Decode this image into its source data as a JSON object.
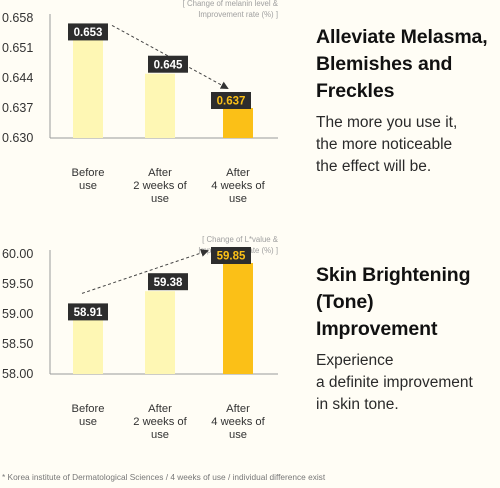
{
  "chart_data": [
    {
      "type": "bar",
      "title": "[ Change of melanin level & Improvement rate (%) ]",
      "title_lines": [
        "[ Change of melanin level &",
        "Improvement rate (%) ]"
      ],
      "categories": [
        [
          "Before",
          "use"
        ],
        [
          "After",
          "2 weeks of",
          "use"
        ],
        [
          "After",
          "4 weeks of",
          "use"
        ]
      ],
      "values": [
        0.653,
        0.645,
        0.637
      ],
      "value_labels": [
        "0.653",
        "0.645",
        "0.637"
      ],
      "yticks": [
        "0.658",
        "0.651",
        "0.644",
        "0.637",
        "0.630"
      ],
      "ylim": [
        0.63,
        0.658
      ],
      "grid": false,
      "bar_colors": [
        "#fef7b4",
        "#fef7b4",
        "#fbc017"
      ],
      "label_colors": [
        "#2d2d2d",
        "#2d2d2d",
        "#2d2d2d"
      ],
      "label_text_colors": [
        "#ffffff",
        "#ffffff",
        "#fbc017"
      ],
      "trend": "down"
    },
    {
      "type": "bar",
      "title": "[ Change of L*value & Improvement rate (%) ]",
      "title_lines": [
        "[ Change of L*value &",
        "Improvement rate (%) ]"
      ],
      "categories": [
        [
          "Before",
          "use"
        ],
        [
          "After",
          "2 weeks of",
          "use"
        ],
        [
          "After",
          "4 weeks of",
          "use"
        ]
      ],
      "values": [
        58.91,
        59.38,
        59.85
      ],
      "value_labels": [
        "58.91",
        "59.38",
        "59.85"
      ],
      "yticks": [
        "60.00",
        "59.50",
        "59.00",
        "58.50",
        "58.00"
      ],
      "ylim": [
        58.0,
        60.0
      ],
      "grid": false,
      "bar_colors": [
        "#fef7b4",
        "#fef7b4",
        "#fbc017"
      ],
      "label_colors": [
        "#2d2d2d",
        "#2d2d2d",
        "#2d2d2d"
      ],
      "label_text_colors": [
        "#ffffff",
        "#ffffff",
        "#fbc017"
      ],
      "trend": "up"
    }
  ],
  "sections": [
    {
      "title": "Alleviate Melasma,\nBlemishes and\nFreckles",
      "description": "The more you use it,\nthe more noticeable\nthe effect will be."
    },
    {
      "title": "Skin Brightening\n(Tone)\nImprovement",
      "description": "Experience\na definite improvement\nin skin tone."
    }
  ],
  "footnote": "* Korea institute of Dermatological Sciences / 4 weeks of use / individual difference exist"
}
